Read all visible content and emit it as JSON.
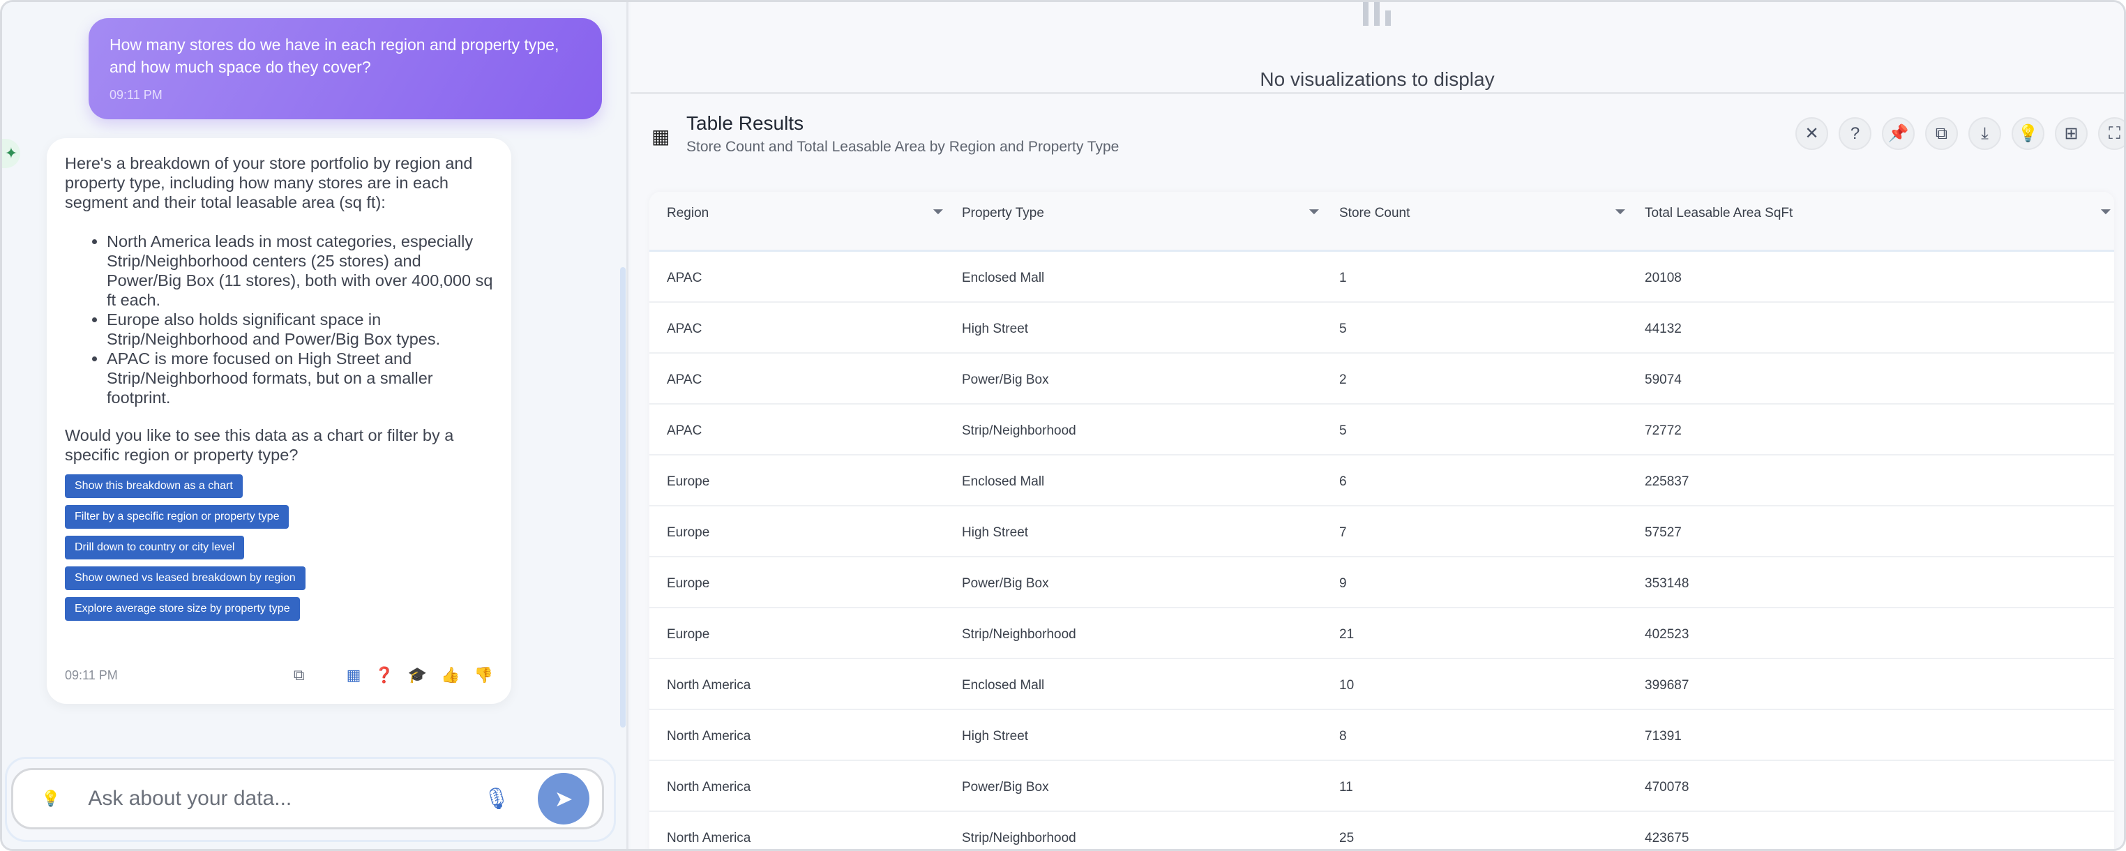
{
  "chat": {
    "user_message": {
      "text": "How many stores do we have in each region and property type, and how much space do they cover?",
      "time": "09:11 PM"
    },
    "assistant_message": {
      "intro": "Here's a breakdown of your store portfolio by region and property type, including how many stores are in each segment and their total leasable area (sq ft):",
      "bullets": [
        "North America leads in most categories, especially Strip/Neighborhood centers (25 stores) and Power/Big Box (11 stores), both with over 400,000 sq ft each.",
        "Europe also holds significant space in Strip/Neighborhood and Power/Big Box types.",
        "APAC is more focused on High Street and Strip/Neighborhood formats, but on a smaller footprint."
      ],
      "question": "Would you like to see this data as a chart or filter by a specific region or property type?",
      "suggestions": [
        "Show this breakdown as a chart",
        "Filter by a specific region or property type",
        "Drill down to country or city level",
        "Show owned vs leased breakdown by region",
        "Explore average store size by property type"
      ],
      "time": "09:11 PM"
    },
    "input_placeholder": "Ask about your data..."
  },
  "visualization": {
    "empty_text": "No visualizations to display"
  },
  "table_results": {
    "title": "Table Results",
    "subtitle": "Store Count and Total Leasable Area by Region and Property Type",
    "actions": [
      "close",
      "help",
      "pin",
      "copy",
      "download",
      "insights",
      "grid",
      "fullscreen"
    ],
    "columns": [
      "Region",
      "Property Type",
      "Store Count",
      "Total Leasable Area SqFt"
    ],
    "rows": [
      [
        "APAC",
        "Enclosed Mall",
        "1",
        "20108"
      ],
      [
        "APAC",
        "High Street",
        "5",
        "44132"
      ],
      [
        "APAC",
        "Power/Big Box",
        "2",
        "59074"
      ],
      [
        "APAC",
        "Strip/Neighborhood",
        "5",
        "72772"
      ],
      [
        "Europe",
        "Enclosed Mall",
        "6",
        "225837"
      ],
      [
        "Europe",
        "High Street",
        "7",
        "57527"
      ],
      [
        "Europe",
        "Power/Big Box",
        "9",
        "353148"
      ],
      [
        "Europe",
        "Strip/Neighborhood",
        "21",
        "402523"
      ],
      [
        "North America",
        "Enclosed Mall",
        "10",
        "399687"
      ],
      [
        "North America",
        "High Street",
        "8",
        "71391"
      ],
      [
        "North America",
        "Power/Big Box",
        "11",
        "470078"
      ],
      [
        "North America",
        "Strip/Neighborhood",
        "25",
        "423675"
      ]
    ]
  },
  "colors": {
    "user_bubble": "#8862ee",
    "suggestion": "#3366c4",
    "send": "#6f95d9"
  }
}
